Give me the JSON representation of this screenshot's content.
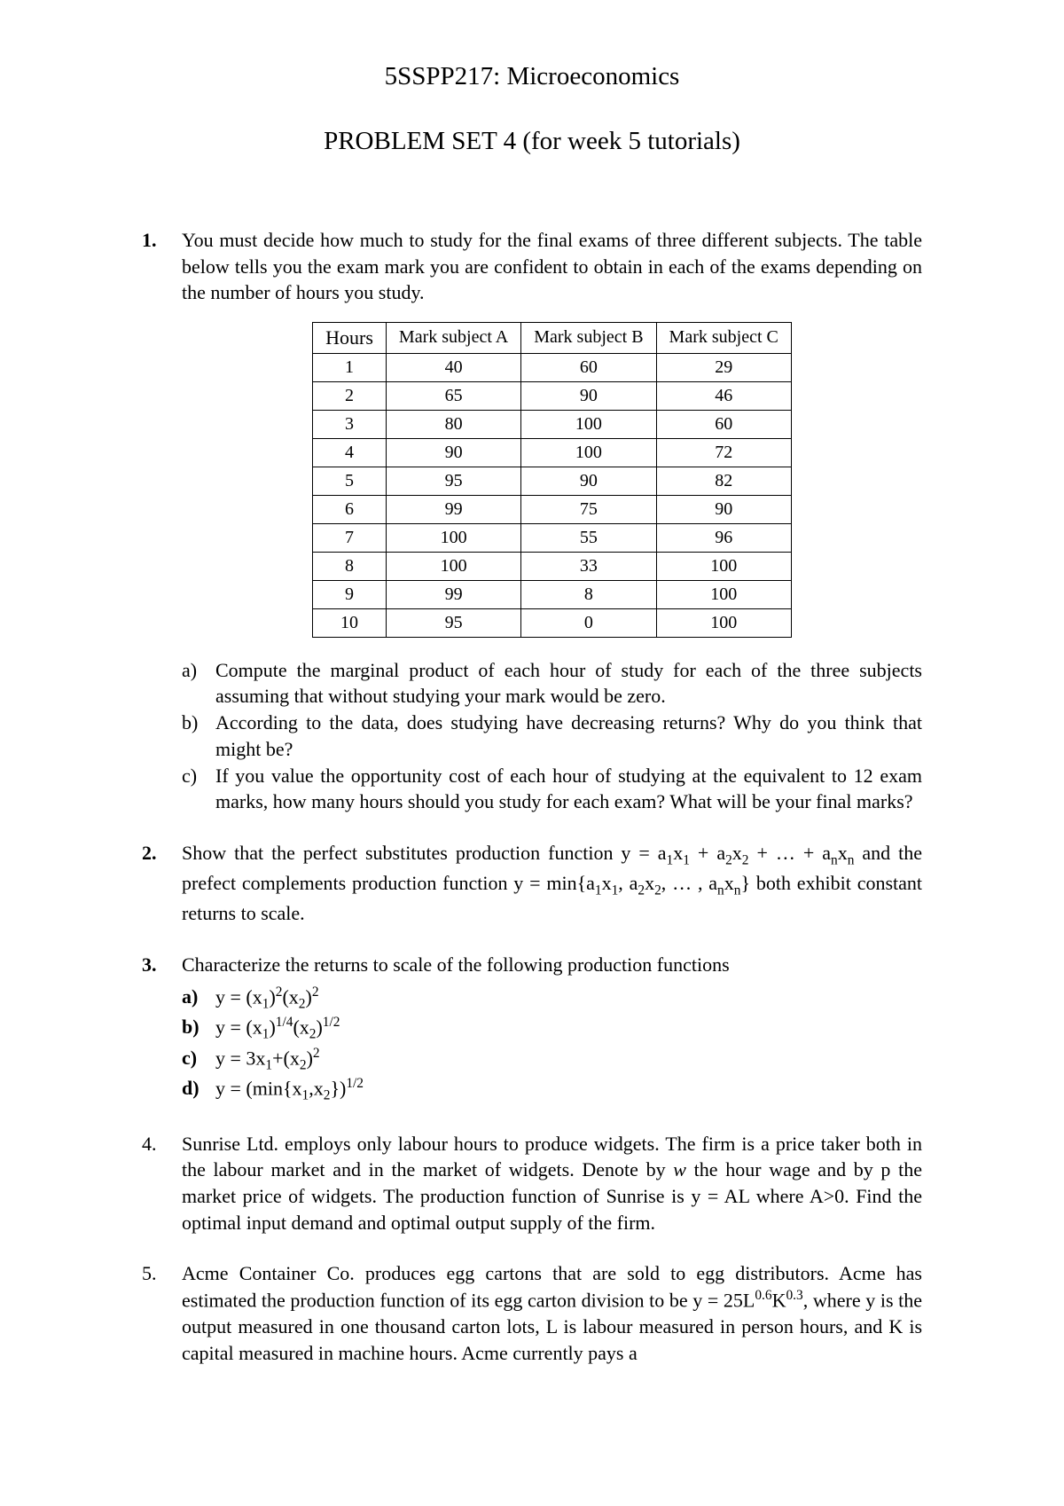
{
  "header": {
    "course_title": "5SSPP217: Microeconomics",
    "problem_set_title": "PROBLEM SET 4 (for week 5 tutorials)"
  },
  "q1": {
    "number": "1.",
    "number_bold": true,
    "intro": "You must decide how much to study for the final exams of three different subjects. The table below tells you the exam mark you are confident to obtain in each of the exams depending on the number of hours you study.",
    "table": {
      "columns": [
        "Hours",
        "Mark subject A",
        "Mark subject B",
        "Mark subject C"
      ],
      "rows": [
        [
          "1",
          "40",
          "60",
          "29"
        ],
        [
          "2",
          "65",
          "90",
          "46"
        ],
        [
          "3",
          "80",
          "100",
          "60"
        ],
        [
          "4",
          "90",
          "100",
          "72"
        ],
        [
          "5",
          "95",
          "90",
          "82"
        ],
        [
          "6",
          "99",
          "75",
          "90"
        ],
        [
          "7",
          "100",
          "55",
          "96"
        ],
        [
          "8",
          "100",
          "33",
          "100"
        ],
        [
          "9",
          "99",
          "8",
          "100"
        ],
        [
          "10",
          "95",
          "0",
          "100"
        ]
      ],
      "border_color": "#000000",
      "background_color": "#ffffff",
      "header_fontsize": 20,
      "cell_fontsize": 20
    },
    "subs": {
      "a": {
        "letter": "a)",
        "text": "Compute the marginal product of each hour of study for each of the three subjects assuming that without studying your mark would be zero."
      },
      "b": {
        "letter": "b)",
        "text": "According to the data, does studying have decreasing returns? Why do you think that might be?"
      },
      "c": {
        "letter": "c)",
        "text": "If you value the opportunity cost of each hour of studying at the equivalent to 12 exam marks, how many hours should you study for each exam? What will be your final marks?"
      }
    }
  },
  "q2": {
    "number": "2.",
    "number_bold": true,
    "text_pre": "Show that the perfect substitutes production function y = a",
    "text_mid1": " + a",
    "text_mid2": " + … + a",
    "text_post1": " and the prefect complements production function y = min{a",
    "text_post2": ", a",
    "text_post3": ", … , a",
    "text_end": "} both exhibit constant returns to scale."
  },
  "q3": {
    "number": "3.",
    "number_bold": true,
    "intro": "Characterize the returns to scale of the following production functions",
    "subs": {
      "a": {
        "letter": "a)",
        "bold": true
      },
      "b": {
        "letter": "b)",
        "bold": true
      },
      "c": {
        "letter": "c)",
        "bold": true
      },
      "d": {
        "letter": "d)",
        "bold": true
      }
    }
  },
  "q4": {
    "number": "4.",
    "number_bold": false,
    "text": "Sunrise Ltd. employs only labour hours to produce widgets. The firm is a price taker both in the labour market and in the market of widgets. Denote by ",
    "italic_w": "w",
    "text2": " the hour wage and by p the market price of widgets. The production function of Sunrise is y = AL where A>0. Find the optimal input demand and optimal output supply of the firm."
  },
  "q5": {
    "number": "5.",
    "number_bold": false,
    "text_pre": "Acme Container Co. produces egg cartons that are sold to egg distributors. Acme has estimated the production function of its egg carton division to be y = 25L",
    "exp1": "0.6",
    "text_mid": "K",
    "exp2": "0.3",
    "text_post": ", where y is the output measured in one thousand carton lots, L is labour measured in person hours, and K is capital measured in machine hours. Acme currently pays a"
  }
}
